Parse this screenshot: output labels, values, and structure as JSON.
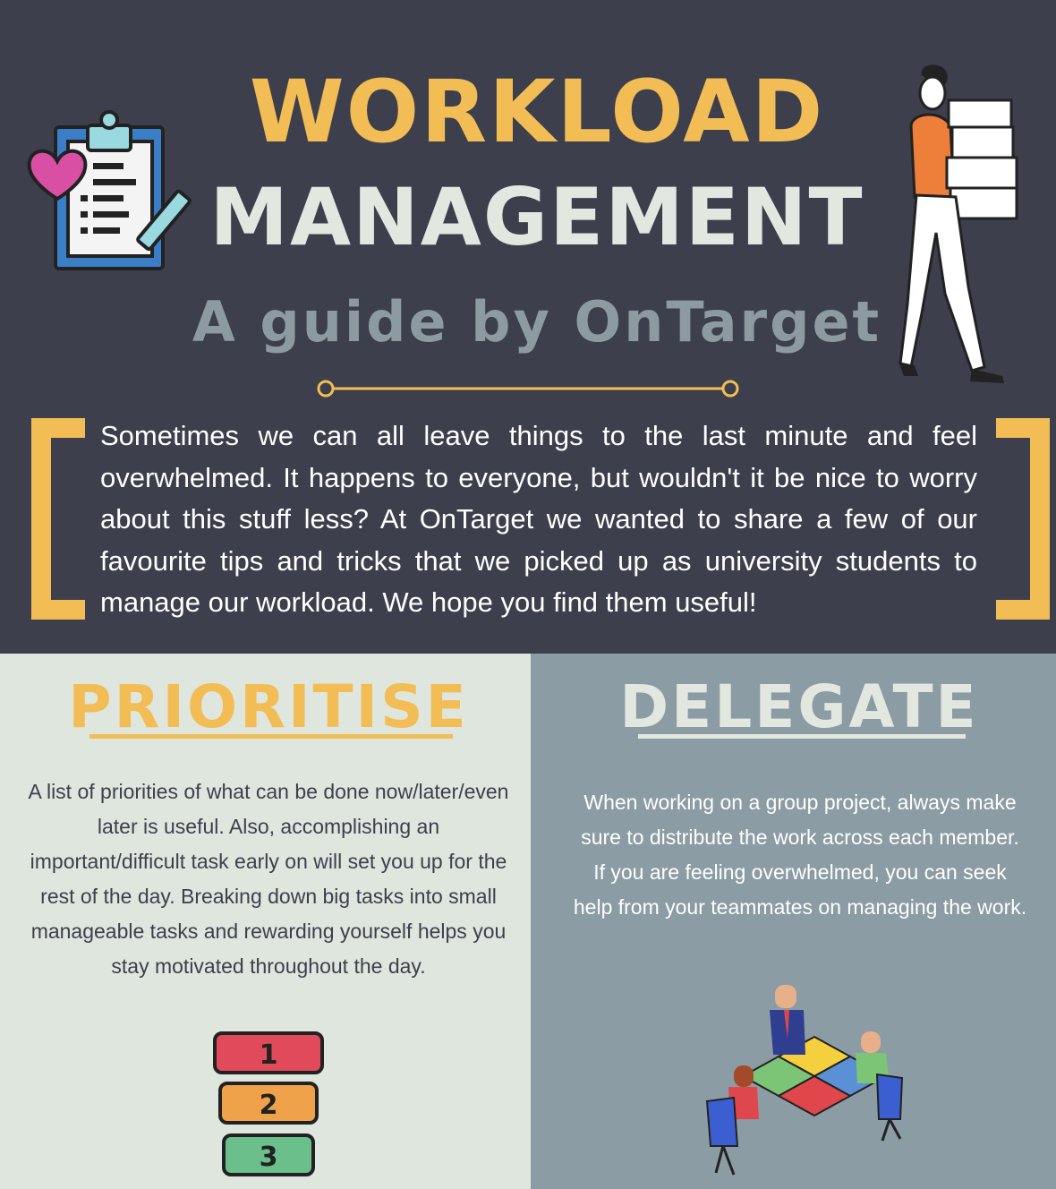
{
  "header": {
    "title_line1": "WORKLOAD",
    "title_line2": "MANAGEMENT",
    "subtitle": "A guide by OnTarget",
    "intro": "Sometimes we can all leave things to the last minute and feel overwhelmed. It happens to everyone, but wouldn't it be nice to worry about this stuff less? At OnTarget we wanted to share a few of our favourite tips and tricks that we picked up as university students to manage our workload. We hope you find them useful!"
  },
  "sections": {
    "prioritise": {
      "heading": "PRIORITISE",
      "body": "A list of priorities of what can be done now/later/even later is useful. Also, accomplishing an important/difficult task early on will set you up for the rest of the day. Breaking down big tasks into small manageable tasks and rewarding yourself helps you stay motivated throughout the day.",
      "priority_badges": [
        "1",
        "2",
        "3"
      ]
    },
    "delegate": {
      "heading": "DELEGATE",
      "body": "When working on a group project, always make sure to distribute the work across each member. If you are feeling overwhelmed, you can seek help from your teammates on managing the work."
    }
  },
  "colors": {
    "header_bg": "#3d3f4d",
    "accent_yellow": "#f2bd55",
    "light_panel": "#dfe6de",
    "grey_panel": "#8c9ca4",
    "badge_red": "#e04a5a",
    "badge_orange": "#f0a24a",
    "badge_green": "#6bbf8a"
  },
  "icons": [
    "clipboard-heart-icon",
    "man-carrying-papers-illustration",
    "team-puzzle-illustration"
  ]
}
